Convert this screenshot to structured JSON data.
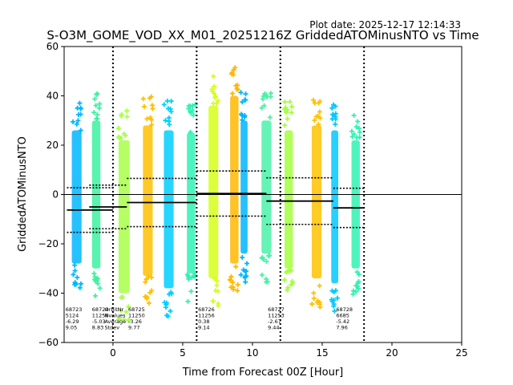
{
  "plot_date": "Plot date: 2025-12-17 12:14:33",
  "chart_data": {
    "type": "scatter",
    "title": "S-O3M_GOME_VOD_XX_M01_20251216Z GriddedATOMinusNTO vs Time",
    "xlabel": "Time from Forecast 00Z [Hour]",
    "ylabel": "GriddedATOMinusNTO",
    "xlim": [
      -3.5,
      25
    ],
    "ylim": [
      -60,
      60
    ],
    "xticks": [
      0,
      5,
      10,
      15,
      20,
      25
    ],
    "yticks": [
      -60,
      -40,
      -20,
      0,
      20,
      40,
      60
    ],
    "vlines": [
      0,
      6,
      12,
      18
    ],
    "zero_line": 0,
    "stats_header": [
      "OrbitNr",
      "Nvalues",
      "Average",
      "Stdev"
    ],
    "orbits": [
      {
        "orbit": "68723",
        "nvalues": "5124",
        "average": "-6.29",
        "stdev": "9.05",
        "t_start": -3.3,
        "t_end": 0.0,
        "y_low": -28,
        "y_high": 26
      },
      {
        "orbit": "68724",
        "nvalues": "11256",
        "average": "-5.03",
        "stdev": "8.83",
        "t_start": -1.7,
        "t_end": 1.0,
        "y_low": -30,
        "y_high": 30
      },
      {
        "orbit": "68725",
        "nvalues": "11250",
        "average": "-3.26",
        "stdev": "9.77",
        "t_start": 1.0,
        "t_end": 6.0,
        "y_low": -30,
        "y_high": 28
      },
      {
        "orbit": "68726",
        "nvalues": "11256",
        "average": "0.38",
        "stdev": "9.14",
        "t_start": 6.0,
        "t_end": 11.0,
        "y_low": -26,
        "y_high": 32
      },
      {
        "orbit": "68727",
        "nvalues": "11253",
        "average": "-2.67",
        "stdev": "9.44",
        "t_start": 11.0,
        "t_end": 15.8,
        "y_low": -28,
        "y_high": 28
      },
      {
        "orbit": "68728",
        "nvalues": "6685",
        "average": "-5.42",
        "stdev": "7.96",
        "t_start": 15.8,
        "t_end": 18.0,
        "y_low": -26,
        "y_high": 22
      }
    ],
    "stripes": [
      {
        "x": -2.6,
        "spread": 0.35,
        "low": -28,
        "high": 26,
        "color": "#00b7ff"
      },
      {
        "x": -1.2,
        "spread": 0.3,
        "low": -30,
        "high": 30,
        "color": "#3cf2a0"
      },
      {
        "x": 0.8,
        "spread": 0.4,
        "low": -40,
        "high": 22,
        "color": "#a8ff4a"
      },
      {
        "x": 2.5,
        "spread": 0.35,
        "low": -33,
        "high": 28,
        "color": "#ffbf00"
      },
      {
        "x": 4.0,
        "spread": 0.35,
        "low": -38,
        "high": 26,
        "color": "#00cfff"
      },
      {
        "x": 5.6,
        "spread": 0.3,
        "low": -32,
        "high": 25,
        "color": "#2ff2b4"
      },
      {
        "x": 7.2,
        "spread": 0.35,
        "low": -34,
        "high": 36,
        "color": "#d6ff1a"
      },
      {
        "x": 8.7,
        "spread": 0.3,
        "low": -28,
        "high": 40,
        "color": "#ffb800"
      },
      {
        "x": 9.4,
        "spread": 0.25,
        "low": -24,
        "high": 30,
        "color": "#00b5ff"
      },
      {
        "x": 11.0,
        "spread": 0.35,
        "low": -24,
        "high": 30,
        "color": "#4af2a8"
      },
      {
        "x": 12.6,
        "spread": 0.3,
        "low": -30,
        "high": 26,
        "color": "#a4ff40"
      },
      {
        "x": 14.6,
        "spread": 0.35,
        "low": -34,
        "high": 28,
        "color": "#ffc200"
      },
      {
        "x": 15.9,
        "spread": 0.25,
        "low": -36,
        "high": 26,
        "color": "#00c8ff"
      },
      {
        "x": 17.4,
        "spread": 0.3,
        "low": -30,
        "high": 22,
        "color": "#30f2b0"
      }
    ]
  }
}
